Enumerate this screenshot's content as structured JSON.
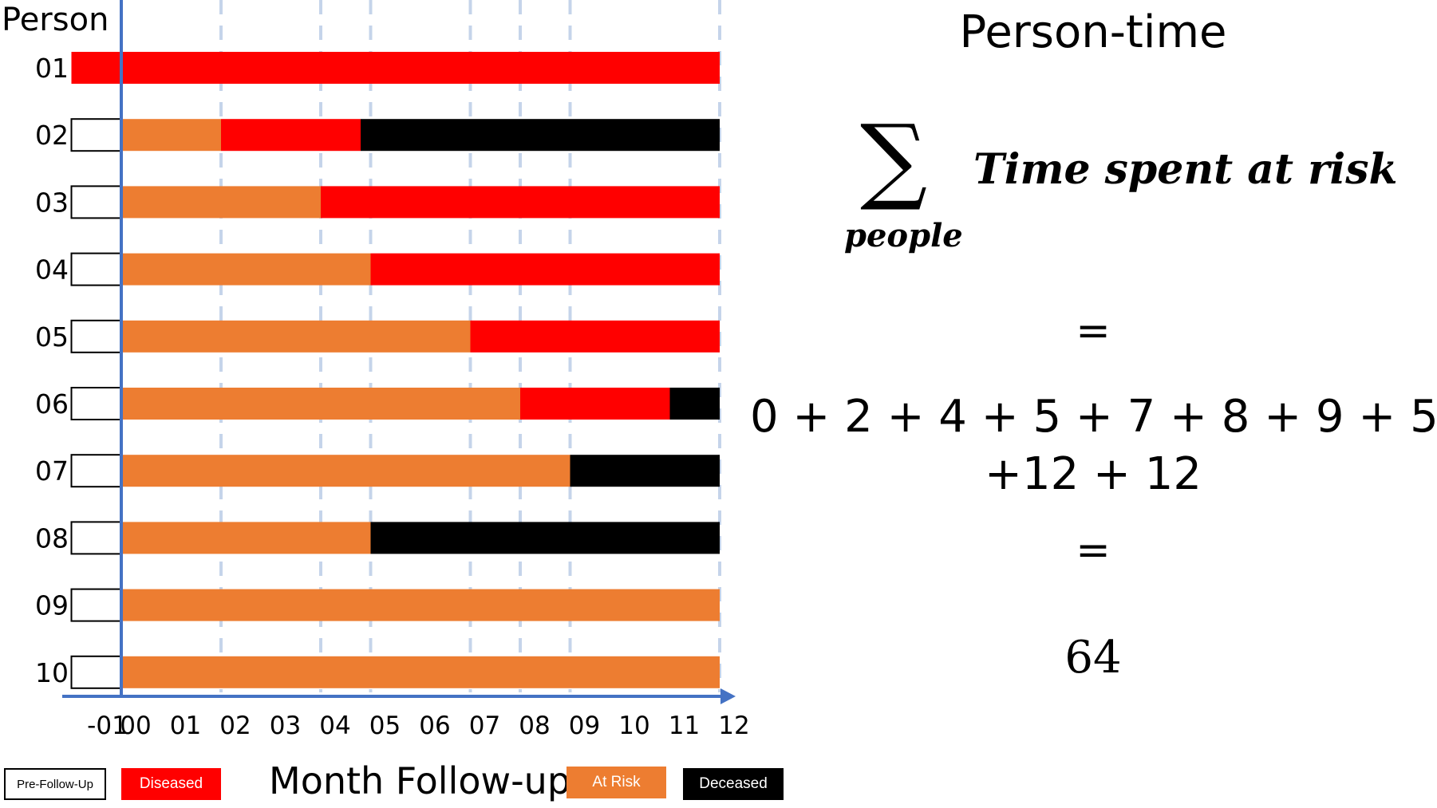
{
  "chart_data": {
    "type": "gantt",
    "y_title": "Person",
    "x_title": "Month Follow-up",
    "x_ticks": [
      "-01",
      "00",
      "01",
      "02",
      "03",
      "04",
      "05",
      "06",
      "07",
      "08",
      "09",
      "10",
      "11",
      "12"
    ],
    "x_range": [
      -1,
      12
    ],
    "gridlines_at": [
      2,
      4,
      5,
      7,
      8,
      9,
      12
    ],
    "colors": {
      "pre_follow_up": "#ffffff",
      "diseased": "#ff0000",
      "at_risk": "#ed7d31",
      "deceased": "#000000",
      "axis": "#4472c4",
      "grid": "#c5d4ea"
    },
    "persons": [
      {
        "label": "01",
        "segments": [
          {
            "status": "diseased",
            "start": -1,
            "end": 12
          }
        ]
      },
      {
        "label": "02",
        "segments": [
          {
            "status": "pre_follow_up",
            "start": -1,
            "end": 0
          },
          {
            "status": "at_risk",
            "start": 0,
            "end": 2
          },
          {
            "status": "diseased",
            "start": 2,
            "end": 4.8
          },
          {
            "status": "deceased",
            "start": 4.8,
            "end": 12
          }
        ]
      },
      {
        "label": "03",
        "segments": [
          {
            "status": "pre_follow_up",
            "start": -1,
            "end": 0
          },
          {
            "status": "at_risk",
            "start": 0,
            "end": 4
          },
          {
            "status": "diseased",
            "start": 4,
            "end": 12
          }
        ]
      },
      {
        "label": "04",
        "segments": [
          {
            "status": "pre_follow_up",
            "start": -1,
            "end": 0
          },
          {
            "status": "at_risk",
            "start": 0,
            "end": 5
          },
          {
            "status": "diseased",
            "start": 5,
            "end": 12
          }
        ]
      },
      {
        "label": "05",
        "segments": [
          {
            "status": "pre_follow_up",
            "start": -1,
            "end": 0
          },
          {
            "status": "at_risk",
            "start": 0,
            "end": 7
          },
          {
            "status": "diseased",
            "start": 7,
            "end": 12
          }
        ]
      },
      {
        "label": "06",
        "segments": [
          {
            "status": "pre_follow_up",
            "start": -1,
            "end": 0
          },
          {
            "status": "at_risk",
            "start": 0,
            "end": 8
          },
          {
            "status": "diseased",
            "start": 8,
            "end": 11
          },
          {
            "status": "deceased",
            "start": 11,
            "end": 12
          }
        ]
      },
      {
        "label": "07",
        "segments": [
          {
            "status": "pre_follow_up",
            "start": -1,
            "end": 0
          },
          {
            "status": "at_risk",
            "start": 0,
            "end": 9
          },
          {
            "status": "deceased",
            "start": 9,
            "end": 12
          }
        ]
      },
      {
        "label": "08",
        "segments": [
          {
            "status": "pre_follow_up",
            "start": -1,
            "end": 0
          },
          {
            "status": "at_risk",
            "start": 0,
            "end": 5
          },
          {
            "status": "deceased",
            "start": 5,
            "end": 12
          }
        ]
      },
      {
        "label": "09",
        "segments": [
          {
            "status": "pre_follow_up",
            "start": -1,
            "end": 0
          },
          {
            "status": "at_risk",
            "start": 0,
            "end": 12
          }
        ]
      },
      {
        "label": "10",
        "segments": [
          {
            "status": "pre_follow_up",
            "start": -1,
            "end": 0
          },
          {
            "status": "at_risk",
            "start": 0,
            "end": 12
          }
        ]
      }
    ],
    "legend": {
      "pre_follow_up": "Pre-Follow-Up",
      "diseased": "Diseased",
      "at_risk": "At Risk",
      "deceased": "Deceased"
    }
  },
  "panel": {
    "title": "Person-time",
    "sigma": "∑",
    "sigma_sub": "people",
    "sum_term": "Time spent at risk",
    "equals1": "=",
    "sum_line1": "0 + 2 + 4 + 5 + 7 + 8 + 9 + 5",
    "sum_line2": "+12 + 12",
    "equals2": "=",
    "result": "64"
  }
}
